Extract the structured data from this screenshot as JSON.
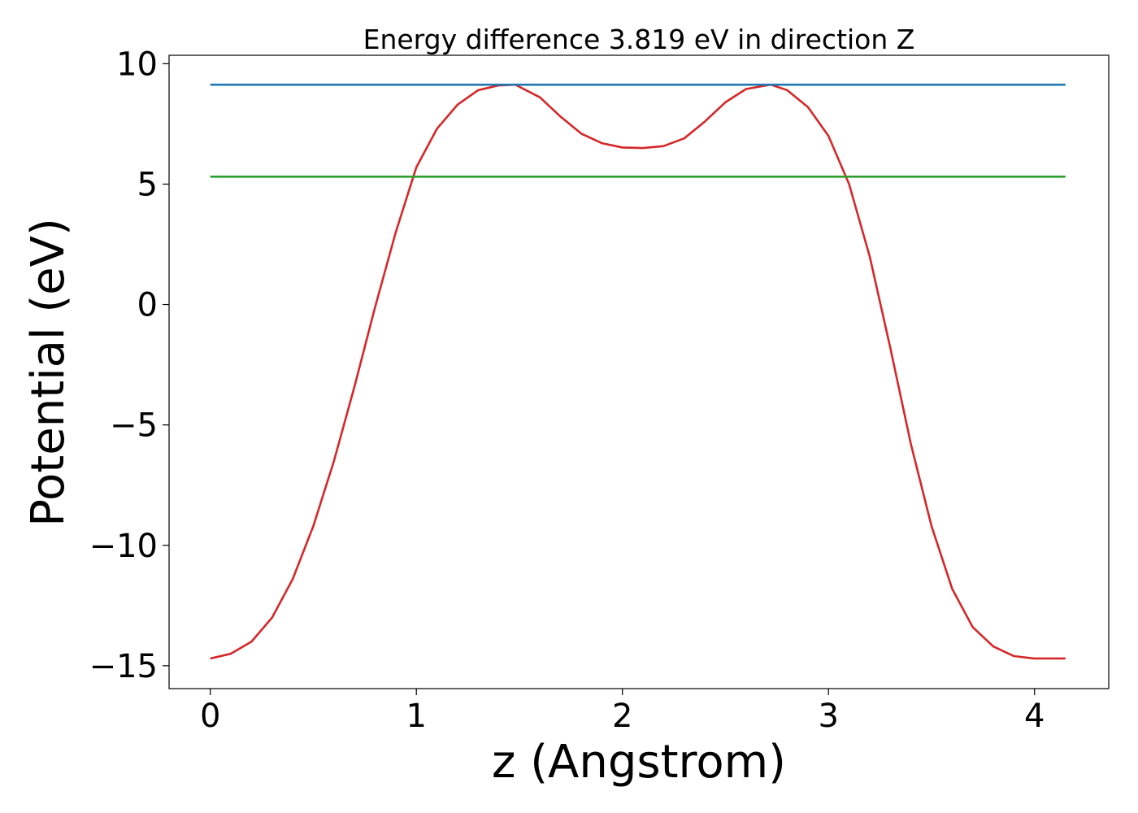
{
  "chart_data": {
    "type": "line",
    "title": "Energy difference 3.819 eV in direction Z",
    "xlabel": "z (Angstrom)",
    "ylabel": "Potential (eV)",
    "xlim": [
      -0.2,
      4.36
    ],
    "ylim": [
      -15.95,
      10.35
    ],
    "grid": false,
    "x_ticks": [
      {
        "value": 0,
        "label": "0"
      },
      {
        "value": 1,
        "label": "1"
      },
      {
        "value": 2,
        "label": "2"
      },
      {
        "value": 3,
        "label": "3"
      },
      {
        "value": 4,
        "label": "4"
      }
    ],
    "y_ticks": [
      {
        "value": 10,
        "label": "10"
      },
      {
        "value": 5,
        "label": "5"
      },
      {
        "value": 0,
        "label": "0"
      },
      {
        "value": -5,
        "label": "−5"
      },
      {
        "value": -10,
        "label": "−10"
      },
      {
        "value": -15,
        "label": "−15"
      }
    ],
    "series": [
      {
        "color": "#d62728",
        "x": [
          0.0,
          0.1,
          0.2,
          0.3,
          0.4,
          0.5,
          0.6,
          0.7,
          0.8,
          0.9,
          1.0,
          1.1,
          1.2,
          1.3,
          1.4,
          1.48,
          1.6,
          1.7,
          1.8,
          1.9,
          2.0,
          2.1,
          2.2,
          2.3,
          2.4,
          2.5,
          2.6,
          2.72,
          2.8,
          2.9,
          3.0,
          3.1,
          3.2,
          3.3,
          3.4,
          3.5,
          3.6,
          3.7,
          3.8,
          3.9,
          4.0,
          4.1,
          4.15
        ],
        "y": [
          -14.7,
          -14.5,
          -14.0,
          -13.0,
          -11.4,
          -9.2,
          -6.5,
          -3.4,
          -0.1,
          3.0,
          5.7,
          7.3,
          8.3,
          8.9,
          9.1,
          9.13,
          8.6,
          7.8,
          7.1,
          6.7,
          6.52,
          6.5,
          6.58,
          6.9,
          7.6,
          8.4,
          8.95,
          9.13,
          8.9,
          8.2,
          7.0,
          5.0,
          2.0,
          -1.8,
          -5.8,
          -9.2,
          -11.8,
          -13.4,
          -14.2,
          -14.6,
          -14.7,
          -14.7,
          -14.7
        ]
      },
      {
        "color": "#1f77b4",
        "x": [
          0.0,
          4.15
        ],
        "y": [
          9.13,
          9.13
        ]
      },
      {
        "color": "#2ca02c",
        "x": [
          0.0,
          4.15
        ],
        "y": [
          5.31,
          5.31
        ]
      }
    ],
    "colors": {
      "frame": "#000000",
      "background": "#ffffff"
    }
  }
}
